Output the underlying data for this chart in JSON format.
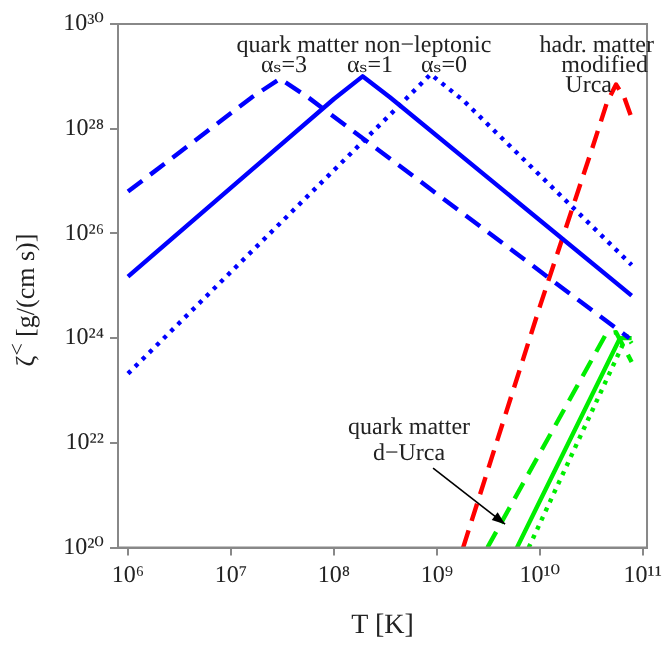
{
  "chart_data": {
    "type": "line",
    "xlabel": "T [K]",
    "ylabel": "ζ$^{<}$ [g/(cm s)]",
    "log": "xy",
    "xlim": [
      800000.0,
      110000000000.0
    ],
    "ylim": [
      1e+20,
      1e+30
    ],
    "xticks": [
      {
        "value": 1000000.0,
        "label": "10⁶"
      },
      {
        "value": 10000000.0,
        "label": "10⁷"
      },
      {
        "value": 100000000.0,
        "label": "10⁸"
      },
      {
        "value": 1000000000.0,
        "label": "10⁹"
      },
      {
        "value": 10000000000.0,
        "label": "10¹⁰"
      },
      {
        "value": 100000000000.0,
        "label": "10¹¹"
      }
    ],
    "yticks": [
      {
        "value": 1e+20,
        "label": "10²⁰"
      },
      {
        "value": 1e+22,
        "label": "10²²"
      },
      {
        "value": 1e+24,
        "label": "10²⁴"
      },
      {
        "value": 1e+26,
        "label": "10²⁶"
      },
      {
        "value": 1e+28,
        "label": "10²⁸"
      },
      {
        "value": 1e+30,
        "label": "10³⁰"
      }
    ],
    "grid": false,
    "legend": false,
    "marker": "none",
    "series": [
      {
        "color": "#0000ff",
        "line_style": "dashed",
        "x": [
          1000000.0,
          16000000.0,
          30000000.0,
          56000000.0,
          74000000000.0
        ],
        "values": [
          6.3e+26,
          4e+28,
          9e+28,
          4e+28,
          1e+24
        ]
      },
      {
        "color": "#0000ff",
        "line_style": "solid",
        "x": [
          1000000.0,
          100000000.0,
          190000000.0,
          350000000.0,
          78000000000.0
        ],
        "values": [
          1.5e+25,
          3.7e+28,
          1e+29,
          4e+28,
          6.5e+24
        ]
      },
      {
        "color": "#0000ff",
        "line_style": "dotted",
        "x": [
          1000000.0,
          450000000.0,
          870000000.0,
          1800000000.0,
          78000000000.0
        ],
        "values": [
          2.1e+23,
          3e+28,
          1.1e+29,
          3.5e+28,
          2.5e+25
        ]
      },
      {
        "color": "#ff0000",
        "line_style": "dashed",
        "x": [
          1800000000.0,
          10000000000.0,
          32000000000.0,
          45000000000.0,
          55000000000.0,
          66000000000.0,
          78000000000.0
        ],
        "values": [
          1e+20,
          4e+24,
          4e+27,
          3.2e+28,
          7e+28,
          4e+28,
          1.6e+28
        ]
      },
      {
        "color": "#00ee00",
        "line_style": "dashed",
        "x": [
          3100000000.0,
          44000000000.0,
          55000000000.0,
          78000000000.0
        ],
        "values": [
          1e+20,
          1.2e+24,
          1.3e+24,
          3.5e+23
        ]
      },
      {
        "color": "#00ee00",
        "line_style": "solid",
        "x": [
          6000000000.0,
          60000000000.0,
          78000000000.0
        ],
        "values": [
          1e+20,
          1e+24,
          1e+24
        ]
      },
      {
        "color": "#00ee00",
        "line_style": "dotted",
        "x": [
          7800000000.0,
          70000000000.0,
          78000000000.0
        ],
        "values": [
          1e+20,
          1.1e+24,
          8e+23
        ]
      }
    ],
    "annotations": [
      "quark matter non−leptonic",
      "αₛ=3",
      "αₛ=1",
      "αₛ=0",
      "hadr. matter",
      "modified",
      "Urca",
      {
        "text": "quark matter\nd−Urca",
        "x": 4600000000.0,
        "y": 2.8e+20
      }
    ]
  }
}
